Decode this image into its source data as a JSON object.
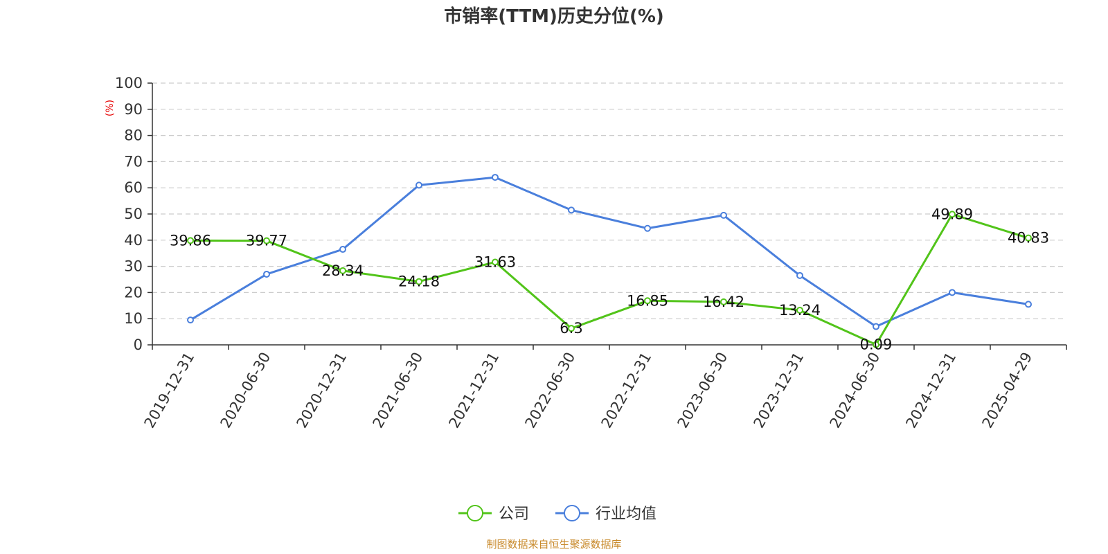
{
  "chart_data": {
    "type": "line",
    "title": "市销率(TTM)历史分位(%)",
    "ylabel": "(%)",
    "xlabel": "",
    "ylim": [
      0,
      100
    ],
    "yticks": [
      0,
      10,
      20,
      30,
      40,
      50,
      60,
      70,
      80,
      90,
      100
    ],
    "grid": true,
    "legend_position": "bottom",
    "categories": [
      "2019-12-31",
      "2020-06-30",
      "2020-12-31",
      "2021-06-30",
      "2021-12-31",
      "2022-06-30",
      "2022-12-31",
      "2023-06-30",
      "2023-12-31",
      "2024-06-30",
      "2024-12-31",
      "2025-04-29"
    ],
    "series": [
      {
        "name": "公司",
        "color": "#52c41a",
        "values": [
          39.86,
          39.77,
          28.34,
          24.18,
          31.63,
          6.3,
          16.85,
          16.42,
          13.24,
          0.09,
          49.89,
          40.83
        ],
        "data_labels": [
          "39.86",
          "39.77",
          "28.34",
          "24.18",
          "31.63",
          "6.3",
          "16.85",
          "16.42",
          "13.24",
          "0.09",
          "49.89",
          "40.83"
        ]
      },
      {
        "name": "行业均值",
        "color": "#4a7fdc",
        "values": [
          9.5,
          27,
          36.5,
          61,
          64,
          51.5,
          44.5,
          49.5,
          26.5,
          7,
          20,
          15.5
        ]
      }
    ],
    "source": "制图数据来自恒生聚源数据库"
  }
}
